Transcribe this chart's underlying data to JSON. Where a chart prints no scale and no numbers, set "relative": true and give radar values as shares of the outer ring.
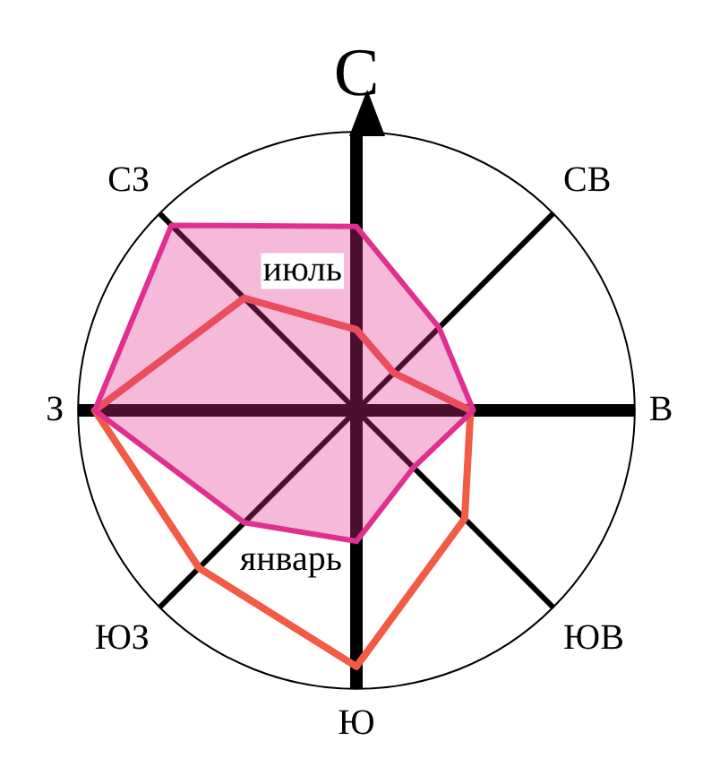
{
  "chart_data": {
    "type": "radar",
    "relative": true,
    "marker": "none",
    "legend": false,
    "categories": [
      "С",
      "СВ",
      "В",
      "ЮВ",
      "Ю",
      "ЮЗ",
      "З",
      "СЗ"
    ],
    "series": [
      {
        "name": "июль",
        "color": "#e0308f",
        "values": [
          0.66,
          0.42,
          0.42,
          0.29,
          0.47,
          0.57,
          0.94,
          0.94
        ]
      },
      {
        "name": "январь",
        "color": "#f25c45",
        "values": [
          0.29,
          0.19,
          0.41,
          0.55,
          0.92,
          0.8,
          0.94,
          0.57
        ]
      }
    ]
  }
}
